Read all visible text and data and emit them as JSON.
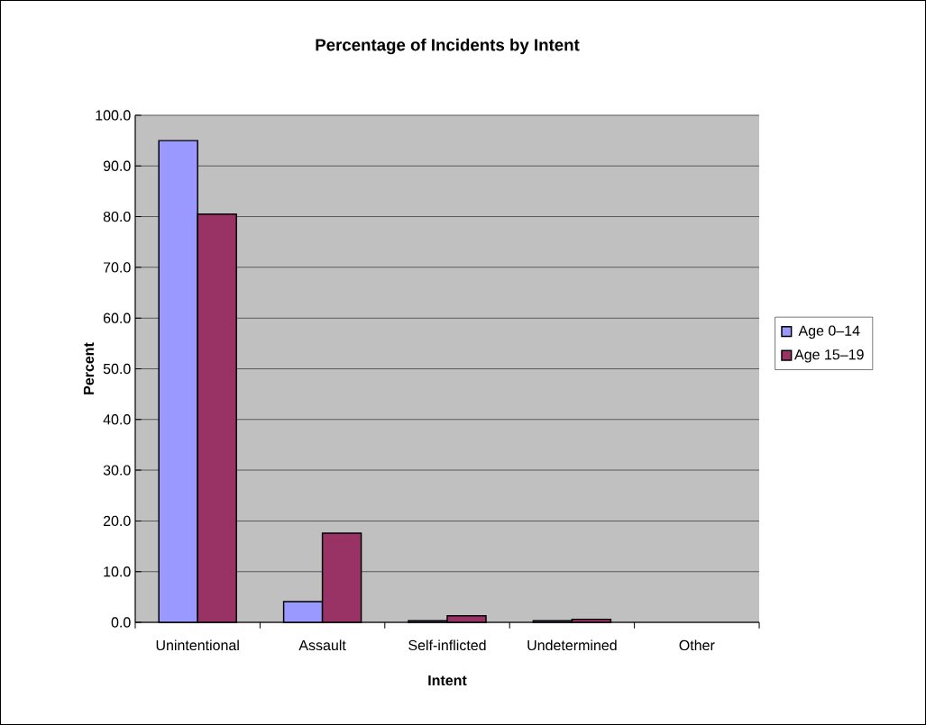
{
  "chart_data": {
    "type": "bar",
    "title": "Percentage of Incidents by Intent",
    "xlabel": "Intent",
    "ylabel": "Percent",
    "categories": [
      "Unintentional",
      "Assault",
      "Self-inflicted",
      "Undetermined",
      "Other"
    ],
    "series": [
      {
        "name": "Age 0–14",
        "color": "#9999ff",
        "values": [
          95.0,
          4.1,
          0.3,
          0.3,
          null
        ]
      },
      {
        "name": "Age 15–19",
        "color": "#993366",
        "values": [
          80.5,
          17.6,
          1.3,
          0.6,
          null
        ]
      }
    ],
    "ylim": [
      0,
      100
    ],
    "yticks": [
      {
        "value": 0,
        "label": "0.0"
      },
      {
        "value": 10,
        "label": "10.0"
      },
      {
        "value": 20,
        "label": "20.0"
      },
      {
        "value": 30,
        "label": "30.0"
      },
      {
        "value": 40,
        "label": "40.0"
      },
      {
        "value": 50,
        "label": "50.0"
      },
      {
        "value": 60,
        "label": "60.0"
      },
      {
        "value": 70,
        "label": "70.0"
      },
      {
        "value": 80,
        "label": "80.0"
      },
      {
        "value": 90,
        "label": "90.0"
      },
      {
        "value": 100,
        "label": "100.0"
      }
    ],
    "grid": "y",
    "legend": "right"
  }
}
